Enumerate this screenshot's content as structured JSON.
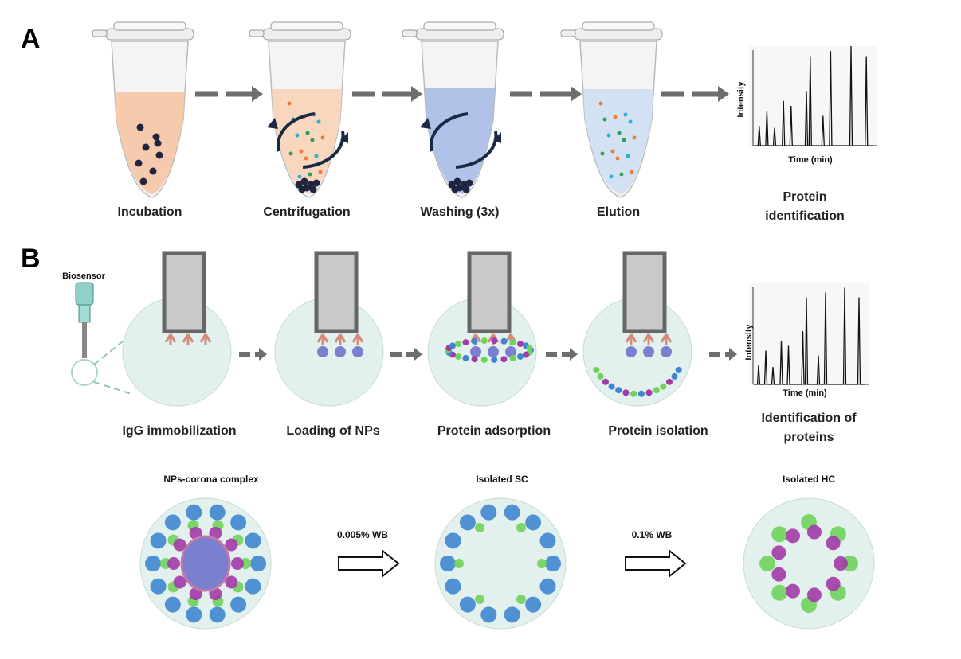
{
  "panel_a": {
    "letter": "A",
    "steps": [
      {
        "label": "Incubation",
        "liquid": "#f6c7a5"
      },
      {
        "label": "Centrifugation",
        "liquid": "#f8d4b8"
      },
      {
        "label": "Washing (3x)",
        "liquid": "#a9bde6"
      },
      {
        "label": "Elution",
        "liquid": "#cfe0f3"
      }
    ],
    "chromatogram": {
      "ylabel": "Intensity",
      "xlabel": "Time (min)"
    },
    "result_label_line1": "Protein",
    "result_label_line2": "identification"
  },
  "panel_b": {
    "letter": "B",
    "biosensor_label": "Biosensor",
    "steps": [
      {
        "label": "IgG immobilization"
      },
      {
        "label": "Loading of NPs"
      },
      {
        "label": "Protein adsorption"
      },
      {
        "label": "Protein isolation"
      }
    ],
    "chromatogram": {
      "ylabel": "Intensity",
      "xlabel": "Time (min)"
    },
    "result_label_line1": "Identification of",
    "result_label_line2": "proteins",
    "complexes": [
      {
        "title": "NPs-corona complex"
      },
      {
        "title": "Isolated SC"
      },
      {
        "title": "Isolated HC"
      }
    ],
    "wash_steps": [
      {
        "label": "0.005% WB"
      },
      {
        "label": "0.1% WB"
      }
    ]
  },
  "colors": {
    "arrow_gray": "#6e6e6e",
    "circle_fill": "#e3f1ee",
    "sensor_gray": "#c9c9c9",
    "soft_corona_blue": "#3f86cf",
    "hard_corona_green": "#6fd35a",
    "hard_corona_purple": "#a23aa8",
    "np_purple": "#7b7fd0"
  }
}
